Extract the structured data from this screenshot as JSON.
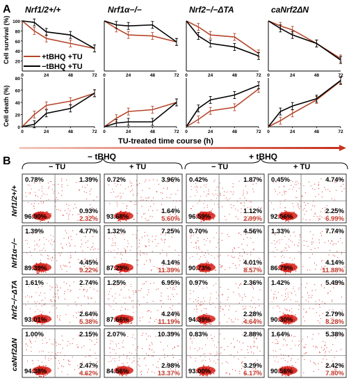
{
  "panel_labels": {
    "a": "A",
    "b": "B"
  },
  "colors": {
    "black": "#000000",
    "red": "#b5462a",
    "dot": "#d8241c",
    "pct_red": "#c0392b"
  },
  "panel_a": {
    "titles": [
      "Nrf1/2+/+",
      "Nrf1α−/−",
      "Nrf2−/−ΔTA",
      "caNrf2ΔN"
    ],
    "ylabel_top": "Cell survival (%)",
    "ylabel_bottom": "Cell death (%)",
    "xlabel": "TU-treated time course (h)",
    "legend": {
      "red": "+tBHQ +TU",
      "black": "−tBHQ +TU"
    }
  },
  "panel_b": {
    "group_labels": [
      "− tBHQ",
      "+ tBHQ"
    ],
    "tu_labels": [
      "− TU",
      "+ TU",
      "− TU",
      "+ TU"
    ],
    "row_labels": [
      "Nrf1/2+/+",
      "Nrf1α−/−",
      "Nrf2−/−ΔTA",
      "caNrf2ΔN"
    ],
    "quadrants": [
      [
        [
          "0.78%",
          "1.39%",
          "96.90%",
          "0.93%",
          "2.32%"
        ],
        [
          "0.72%",
          "3.96%",
          "93.68%",
          "1.64%",
          "5.60%"
        ],
        [
          "0.42%",
          "1.87%",
          "96.59%",
          "1.12%",
          "2.99%"
        ],
        [
          "0.45%",
          "4.74%",
          "92.56%",
          "2.25%",
          "6.99%"
        ]
      ],
      [
        [
          "1.39%",
          "4.77%",
          "89.39%",
          "4.45%",
          "9.22%"
        ],
        [
          "1.32%",
          "7.25%",
          "87.29%",
          "4.14%",
          "11.39%"
        ],
        [
          "0.70%",
          "4.56%",
          "90.73%",
          "4.01%",
          "8.57%"
        ],
        [
          "1.33%",
          "7.74%",
          "86.79%",
          "4.14%",
          "11.88%"
        ]
      ],
      [
        [
          "1.61%",
          "2.74%",
          "93.01%",
          "2.64%",
          "5.38%"
        ],
        [
          "1.25%",
          "6.95%",
          "87.66%",
          "4.24%",
          "11.19%"
        ],
        [
          "0.97%",
          "2.36%",
          "94.39%",
          "2.28%",
          "4.64%"
        ],
        [
          "1.42%",
          "5.49%",
          "90.30%",
          "2.79%",
          "8.28%"
        ]
      ],
      [
        [
          "1.00%",
          "2.15%",
          "94.38%",
          "2.47%",
          "4.62%"
        ],
        [
          "2.07%",
          "10.39%",
          "84.56%",
          "2.98%",
          "13.37%"
        ],
        [
          "0.83%",
          "2.88%",
          "93.00%",
          "3.29%",
          "6.17%"
        ],
        [
          "1.64%",
          "5.38%",
          "90.56%",
          "2.42%",
          "7.80%"
        ]
      ]
    ]
  },
  "chart_data": [
    {
      "type": "line",
      "title": "Nrf1/2+/+",
      "ylabel": "Cell survival (%)",
      "x": [
        0,
        12,
        24,
        48,
        72
      ],
      "ylim": [
        0,
        100
      ],
      "series": [
        {
          "name": "+tBHQ +TU",
          "values": [
            100,
            80,
            65,
            55,
            45
          ]
        },
        {
          "name": "−tBHQ +TU",
          "values": [
            100,
            97,
            78,
            72,
            45
          ]
        }
      ]
    },
    {
      "type": "line",
      "title": "Nrf1α−/−",
      "x": [
        0,
        12,
        24,
        48,
        72
      ],
      "ylim": [
        0,
        100
      ],
      "series": [
        {
          "name": "+tBHQ +TU",
          "values": [
            100,
            85,
            72,
            70,
            58
          ]
        },
        {
          "name": "−tBHQ +TU",
          "values": [
            100,
            92,
            90,
            92,
            58
          ]
        }
      ]
    },
    {
      "type": "line",
      "title": "Nrf2−/−ΔTA",
      "x": [
        0,
        12,
        24,
        48,
        72
      ],
      "ylim": [
        0,
        100
      ],
      "series": [
        {
          "name": "+tBHQ +TU",
          "values": [
            100,
            88,
            72,
            68,
            35
          ]
        },
        {
          "name": "−tBHQ +TU",
          "values": [
            100,
            70,
            55,
            48,
            30
          ]
        }
      ]
    },
    {
      "type": "line",
      "title": "caNrf2ΔN",
      "x": [
        0,
        12,
        24,
        48,
        72
      ],
      "ylim": [
        0,
        100
      ],
      "series": [
        {
          "name": "+tBHQ +TU",
          "values": [
            100,
            90,
            82,
            55,
            25
          ]
        },
        {
          "name": "−tBHQ +TU",
          "values": [
            100,
            85,
            72,
            55,
            22
          ]
        }
      ]
    },
    {
      "type": "line",
      "ylabel": "Cell death (%)",
      "x": [
        0,
        12,
        24,
        48,
        72
      ],
      "ylim": [
        0,
        80
      ],
      "series": [
        {
          "name": "+tBHQ +TU",
          "values": [
            0,
            20,
            35,
            42,
            55
          ]
        },
        {
          "name": "−tBHQ +TU",
          "values": [
            0,
            4,
            22,
            30,
            55
          ]
        }
      ]
    },
    {
      "type": "line",
      "x": [
        0,
        12,
        24,
        48,
        72
      ],
      "ylim": [
        0,
        80
      ],
      "series": [
        {
          "name": "+tBHQ +TU",
          "values": [
            0,
            14,
            25,
            28,
            40
          ]
        },
        {
          "name": "−tBHQ +TU",
          "values": [
            0,
            6,
            8,
            8,
            40
          ]
        }
      ]
    },
    {
      "type": "line",
      "xlabel": "TU-treated time course (h)",
      "x": [
        0,
        12,
        24,
        48,
        72
      ],
      "ylim": [
        0,
        80
      ],
      "series": [
        {
          "name": "+tBHQ +TU",
          "values": [
            0,
            12,
            26,
            32,
            62
          ]
        },
        {
          "name": "−tBHQ +TU",
          "values": [
            0,
            30,
            44,
            52,
            68
          ]
        }
      ]
    },
    {
      "type": "line",
      "x": [
        0,
        12,
        24,
        48,
        72
      ],
      "ylim": [
        0,
        80
      ],
      "series": [
        {
          "name": "+tBHQ +TU",
          "values": [
            0,
            10,
            22,
            44,
            75
          ]
        },
        {
          "name": "−tBHQ +TU",
          "values": [
            0,
            25,
            34,
            46,
            76
          ]
        }
      ]
    }
  ]
}
